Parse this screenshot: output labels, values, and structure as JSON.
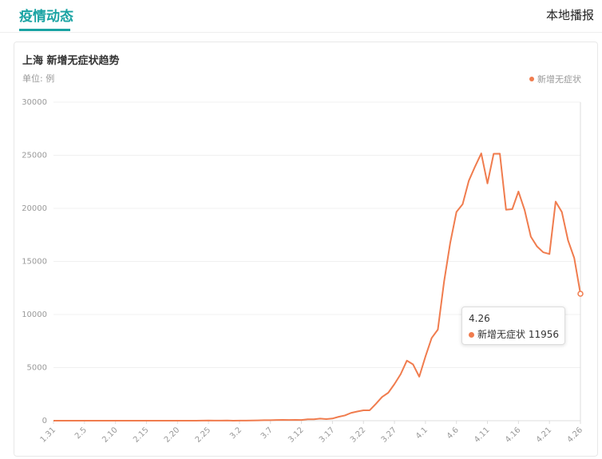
{
  "header": {
    "tab": "疫情动态",
    "link": "本地播报"
  },
  "chart_data": {
    "type": "line",
    "title": "上海 新增无症状趋势",
    "subtitle": "单位: 例",
    "categories": [
      "1.31",
      null,
      null,
      null,
      null,
      "2.5",
      null,
      null,
      null,
      null,
      "2.10",
      null,
      null,
      null,
      null,
      "2.15",
      null,
      null,
      null,
      null,
      "2.20",
      null,
      null,
      null,
      null,
      "2.25",
      null,
      null,
      null,
      null,
      "3.2",
      null,
      null,
      null,
      null,
      "3.7",
      null,
      null,
      null,
      null,
      "3.12",
      null,
      null,
      null,
      null,
      "3.17",
      null,
      null,
      null,
      null,
      "3.22",
      null,
      null,
      null,
      null,
      "3.27",
      null,
      null,
      null,
      null,
      "4.1",
      null,
      null,
      null,
      null,
      "4.6",
      null,
      null,
      null,
      null,
      "4.11",
      null,
      null,
      null,
      null,
      "4.16",
      null,
      null,
      null,
      null,
      "4.21",
      null,
      null,
      null,
      null,
      "4.26"
    ],
    "series": [
      {
        "name": "新增无症状",
        "color": "#f07c4e",
        "values": [
          0,
          0,
          0,
          0,
          0,
          0,
          0,
          0,
          0,
          0,
          0,
          0,
          0,
          0,
          0,
          0,
          0,
          0,
          0,
          0,
          0,
          0,
          0,
          0,
          10,
          15,
          5,
          10,
          20,
          1,
          5,
          14,
          16,
          28,
          45,
          51,
          62,
          76,
          64,
          78,
          64,
          128,
          130,
          197,
          150,
          203,
          366,
          492,
          734,
          865,
          977,
          979,
          1582,
          2231,
          2631,
          3450,
          4381,
          5656,
          5298,
          4144,
          6051,
          7788,
          8581,
          13086,
          16766,
          19660,
          20398,
          22609,
          23937,
          25173,
          22348,
          25141,
          25146,
          19872,
          19923,
          21582,
          19831,
          17332,
          16407,
          15861,
          15698,
          20634,
          19657,
          16983,
          15319,
          11956
        ]
      }
    ],
    "ylim": [
      0,
      30000
    ],
    "yticks": [
      0,
      5000,
      10000,
      15000,
      20000,
      25000,
      30000
    ],
    "grid": true,
    "legend": "top-right"
  }
}
